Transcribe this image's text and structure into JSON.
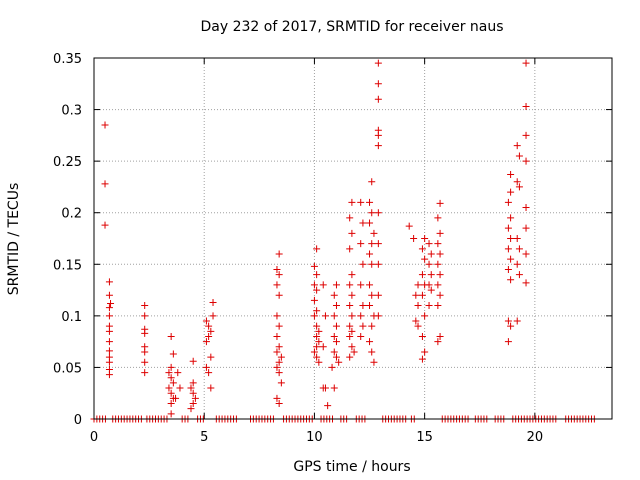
{
  "chart_data": {
    "type": "scatter",
    "title": "Day 232 of 2017, SRMTID for receiver naus",
    "xlabel": "GPS time / hours",
    "ylabel": "SRMTID / TECUs",
    "xlim": [
      0,
      23.5
    ],
    "ylim": [
      0,
      0.35
    ],
    "xticks": [
      0,
      5,
      10,
      15,
      20
    ],
    "xtick_labels": [
      "0",
      "5",
      "10",
      "15",
      "20"
    ],
    "yticks": [
      0,
      0.05,
      0.1,
      0.15,
      0.2,
      0.25,
      0.3,
      0.35
    ],
    "ytick_labels": [
      "0",
      "0.05",
      "0.1",
      "0.15",
      "0.2",
      "0.25",
      "0.3",
      "0.35"
    ],
    "grid": true,
    "marker": "+",
    "color": "#dd0000",
    "series": [
      {
        "name": "SRMTID",
        "points": [
          [
            0.5,
            0.285
          ],
          [
            0.5,
            0.228
          ],
          [
            0.5,
            0.188
          ],
          [
            0.7,
            0.133
          ],
          [
            0.7,
            0.12
          ],
          [
            0.75,
            0.112
          ],
          [
            0.7,
            0.108
          ],
          [
            0.7,
            0.1
          ],
          [
            0.7,
            0.09
          ],
          [
            0.7,
            0.085
          ],
          [
            0.7,
            0.075
          ],
          [
            0.7,
            0.066
          ],
          [
            0.7,
            0.06
          ],
          [
            0.7,
            0.055
          ],
          [
            0.7,
            0.048
          ],
          [
            0.7,
            0.043
          ],
          [
            2.3,
            0.11
          ],
          [
            2.3,
            0.1
          ],
          [
            2.3,
            0.087
          ],
          [
            2.3,
            0.083
          ],
          [
            2.3,
            0.07
          ],
          [
            2.3,
            0.065
          ],
          [
            2.3,
            0.055
          ],
          [
            2.3,
            0.045
          ],
          [
            3.5,
            0.08
          ],
          [
            3.6,
            0.063
          ],
          [
            3.5,
            0.05
          ],
          [
            3.4,
            0.045
          ],
          [
            3.5,
            0.04
          ],
          [
            3.6,
            0.035
          ],
          [
            3.4,
            0.03
          ],
          [
            3.5,
            0.025
          ],
          [
            3.6,
            0.02
          ],
          [
            3.5,
            0.015
          ],
          [
            3.5,
            0.005
          ],
          [
            3.8,
            0.045
          ],
          [
            3.9,
            0.03
          ],
          [
            3.7,
            0.02
          ],
          [
            4.5,
            0.056
          ],
          [
            4.5,
            0.035
          ],
          [
            4.4,
            0.03
          ],
          [
            4.5,
            0.025
          ],
          [
            4.6,
            0.02
          ],
          [
            4.5,
            0.015
          ],
          [
            4.4,
            0.01
          ],
          [
            5.1,
            0.095
          ],
          [
            5.2,
            0.09
          ],
          [
            5.3,
            0.085
          ],
          [
            5.2,
            0.08
          ],
          [
            5.1,
            0.075
          ],
          [
            5.3,
            0.06
          ],
          [
            5.1,
            0.05
          ],
          [
            5.2,
            0.045
          ],
          [
            5.3,
            0.03
          ],
          [
            5.4,
            0.113
          ],
          [
            5.4,
            0.1
          ],
          [
            8.4,
            0.16
          ],
          [
            8.3,
            0.145
          ],
          [
            8.4,
            0.14
          ],
          [
            8.3,
            0.13
          ],
          [
            8.4,
            0.12
          ],
          [
            8.3,
            0.1
          ],
          [
            8.4,
            0.09
          ],
          [
            8.3,
            0.08
          ],
          [
            8.4,
            0.07
          ],
          [
            8.3,
            0.065
          ],
          [
            8.5,
            0.06
          ],
          [
            8.4,
            0.055
          ],
          [
            8.3,
            0.05
          ],
          [
            8.4,
            0.045
          ],
          [
            8.5,
            0.035
          ],
          [
            8.3,
            0.02
          ],
          [
            8.4,
            0.015
          ],
          [
            10.1,
            0.165
          ],
          [
            10.0,
            0.148
          ],
          [
            10.1,
            0.14
          ],
          [
            10.0,
            0.13
          ],
          [
            10.1,
            0.125
          ],
          [
            10.0,
            0.115
          ],
          [
            10.1,
            0.105
          ],
          [
            10.0,
            0.1
          ],
          [
            10.1,
            0.09
          ],
          [
            10.2,
            0.085
          ],
          [
            10.1,
            0.08
          ],
          [
            10.2,
            0.075
          ],
          [
            10.1,
            0.07
          ],
          [
            10.0,
            0.065
          ],
          [
            10.1,
            0.06
          ],
          [
            10.2,
            0.055
          ],
          [
            10.4,
            0.13
          ],
          [
            10.5,
            0.1
          ],
          [
            10.4,
            0.07
          ],
          [
            10.5,
            0.03
          ],
          [
            10.6,
            0.013
          ],
          [
            10.4,
            0.03
          ],
          [
            11.0,
            0.13
          ],
          [
            10.9,
            0.12
          ],
          [
            11.0,
            0.11
          ],
          [
            10.9,
            0.1
          ],
          [
            11.0,
            0.09
          ],
          [
            10.9,
            0.08
          ],
          [
            11.0,
            0.075
          ],
          [
            10.9,
            0.065
          ],
          [
            11.0,
            0.06
          ],
          [
            11.1,
            0.055
          ],
          [
            10.8,
            0.05
          ],
          [
            10.9,
            0.03
          ],
          [
            11.7,
            0.21
          ],
          [
            11.6,
            0.195
          ],
          [
            11.7,
            0.18
          ],
          [
            11.6,
            0.165
          ],
          [
            11.7,
            0.14
          ],
          [
            11.6,
            0.13
          ],
          [
            11.7,
            0.12
          ],
          [
            11.6,
            0.11
          ],
          [
            11.7,
            0.1
          ],
          [
            11.6,
            0.09
          ],
          [
            11.7,
            0.085
          ],
          [
            11.6,
            0.08
          ],
          [
            11.7,
            0.07
          ],
          [
            11.8,
            0.065
          ],
          [
            11.6,
            0.06
          ],
          [
            12.1,
            0.21
          ],
          [
            12.2,
            0.19
          ],
          [
            12.1,
            0.17
          ],
          [
            12.2,
            0.15
          ],
          [
            12.1,
            0.13
          ],
          [
            12.2,
            0.11
          ],
          [
            12.1,
            0.1
          ],
          [
            12.2,
            0.09
          ],
          [
            12.1,
            0.08
          ],
          [
            12.6,
            0.23
          ],
          [
            12.5,
            0.21
          ],
          [
            12.6,
            0.2
          ],
          [
            12.5,
            0.19
          ],
          [
            12.7,
            0.18
          ],
          [
            12.6,
            0.17
          ],
          [
            12.5,
            0.16
          ],
          [
            12.6,
            0.15
          ],
          [
            12.5,
            0.13
          ],
          [
            12.6,
            0.12
          ],
          [
            12.5,
            0.11
          ],
          [
            12.7,
            0.1
          ],
          [
            12.6,
            0.09
          ],
          [
            12.5,
            0.075
          ],
          [
            12.6,
            0.065
          ],
          [
            12.7,
            0.055
          ],
          [
            12.9,
            0.345
          ],
          [
            12.9,
            0.325
          ],
          [
            12.9,
            0.31
          ],
          [
            12.9,
            0.28
          ],
          [
            12.9,
            0.275
          ],
          [
            12.9,
            0.265
          ],
          [
            12.9,
            0.2
          ],
          [
            12.9,
            0.17
          ],
          [
            12.9,
            0.15
          ],
          [
            12.9,
            0.12
          ],
          [
            12.9,
            0.1
          ],
          [
            14.3,
            0.187
          ],
          [
            14.5,
            0.175
          ],
          [
            14.7,
            0.13
          ],
          [
            14.6,
            0.12
          ],
          [
            14.7,
            0.11
          ],
          [
            14.6,
            0.095
          ],
          [
            14.7,
            0.09
          ],
          [
            15.0,
            0.175
          ],
          [
            14.9,
            0.165
          ],
          [
            15.0,
            0.155
          ],
          [
            14.9,
            0.14
          ],
          [
            15.0,
            0.13
          ],
          [
            14.9,
            0.12
          ],
          [
            15.0,
            0.1
          ],
          [
            14.9,
            0.08
          ],
          [
            15.0,
            0.065
          ],
          [
            14.9,
            0.058
          ],
          [
            15.2,
            0.17
          ],
          [
            15.3,
            0.16
          ],
          [
            15.2,
            0.15
          ],
          [
            15.3,
            0.14
          ],
          [
            15.2,
            0.13
          ],
          [
            15.3,
            0.125
          ],
          [
            15.2,
            0.11
          ],
          [
            15.7,
            0.209
          ],
          [
            15.6,
            0.195
          ],
          [
            15.7,
            0.18
          ],
          [
            15.6,
            0.17
          ],
          [
            15.7,
            0.16
          ],
          [
            15.6,
            0.15
          ],
          [
            15.7,
            0.14
          ],
          [
            15.6,
            0.13
          ],
          [
            15.7,
            0.12
          ],
          [
            15.6,
            0.11
          ],
          [
            15.7,
            0.08
          ],
          [
            15.6,
            0.075
          ],
          [
            18.9,
            0.237
          ],
          [
            18.9,
            0.22
          ],
          [
            18.8,
            0.21
          ],
          [
            18.9,
            0.195
          ],
          [
            18.8,
            0.185
          ],
          [
            18.9,
            0.175
          ],
          [
            18.8,
            0.165
          ],
          [
            18.9,
            0.155
          ],
          [
            18.8,
            0.145
          ],
          [
            18.9,
            0.135
          ],
          [
            18.8,
            0.095
          ],
          [
            18.9,
            0.09
          ],
          [
            18.8,
            0.075
          ],
          [
            19.2,
            0.265
          ],
          [
            19.3,
            0.255
          ],
          [
            19.2,
            0.23
          ],
          [
            19.3,
            0.225
          ],
          [
            19.2,
            0.175
          ],
          [
            19.3,
            0.165
          ],
          [
            19.2,
            0.15
          ],
          [
            19.3,
            0.14
          ],
          [
            19.2,
            0.095
          ],
          [
            19.6,
            0.345
          ],
          [
            19.6,
            0.303
          ],
          [
            19.6,
            0.275
          ],
          [
            19.6,
            0.25
          ],
          [
            19.6,
            0.205
          ],
          [
            19.6,
            0.185
          ],
          [
            19.6,
            0.16
          ],
          [
            19.6,
            0.132
          ]
        ],
        "zero_segments": [
          [
            0.0,
            0.55
          ],
          [
            0.85,
            2.15
          ],
          [
            2.4,
            3.35
          ],
          [
            4.0,
            4.35
          ],
          [
            4.7,
            5.0
          ],
          [
            5.55,
            6.5
          ],
          [
            7.1,
            8.2
          ],
          [
            8.6,
            9.9
          ],
          [
            10.3,
            10.85
          ],
          [
            11.2,
            11.5
          ],
          [
            11.9,
            12.4
          ],
          [
            13.1,
            14.2
          ],
          [
            14.4,
            14.55
          ],
          [
            15.8,
            17.0
          ],
          [
            17.3,
            17.9
          ],
          [
            18.2,
            18.7
          ],
          [
            19.0,
            21.0
          ],
          [
            21.4,
            22.7
          ]
        ]
      }
    ]
  }
}
